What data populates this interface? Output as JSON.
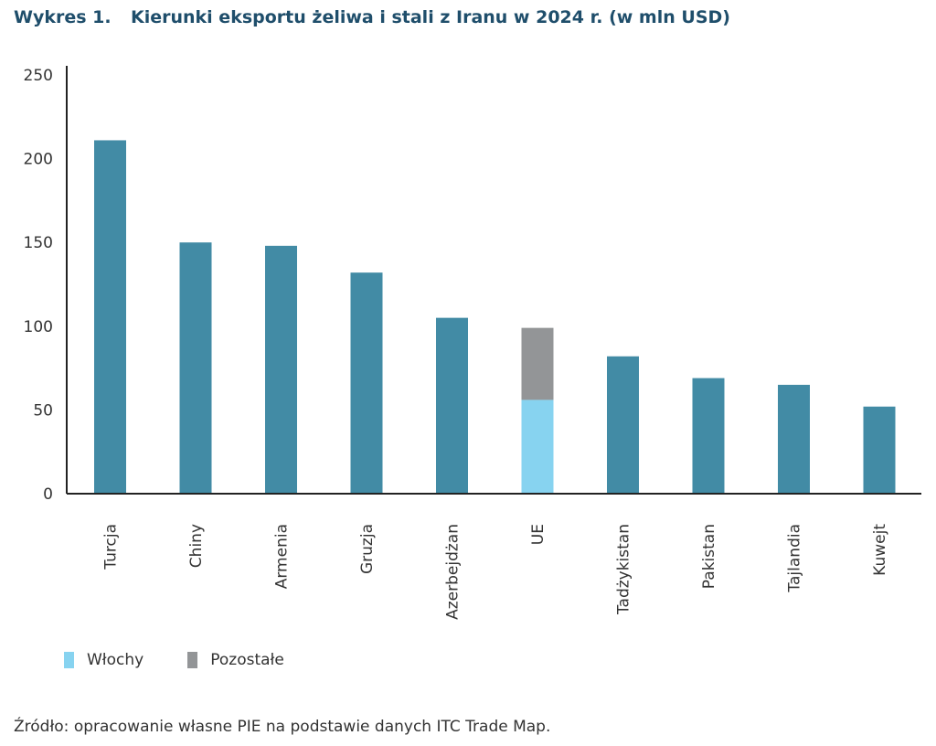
{
  "title_number": "Wykres 1.",
  "title_text": "Kierunki eksportu żeliwa i stali z Iranu w 2024 r. (w mln USD)",
  "source": "Źródło: opracowanie własne PIE na podstawie danych ITC Trade Map.",
  "colors": {
    "bar": "#428ba5",
    "wlochy": "#87d3f0",
    "pozostale": "#939597",
    "axis": "#222222"
  },
  "legend": [
    {
      "label": "Włochy",
      "color": "#87d3f0"
    },
    {
      "label": "Pozostałe",
      "color": "#939597"
    }
  ],
  "chart_data": {
    "type": "bar",
    "title": "Kierunki eksportu żeliwa i stali z Iranu w 2024 r. (w mln USD)",
    "categories": [
      "Turcja",
      "Chiny",
      "Armenia",
      "Gruzja",
      "Azerbejdżan",
      "UE",
      "Tadżykistan",
      "Pakistan",
      "Tajlandia",
      "Kuwejt"
    ],
    "values": [
      211,
      150,
      148,
      132,
      105,
      99,
      82,
      69,
      65,
      52
    ],
    "stacked_ue": [
      {
        "name": "Włochy",
        "value": 56
      },
      {
        "name": "Pozostałe",
        "value": 43
      }
    ],
    "ylim": [
      0,
      250
    ],
    "yticks": [
      0,
      50,
      100,
      150,
      200,
      250
    ],
    "grid": false,
    "legend_position": "bottom-left"
  }
}
